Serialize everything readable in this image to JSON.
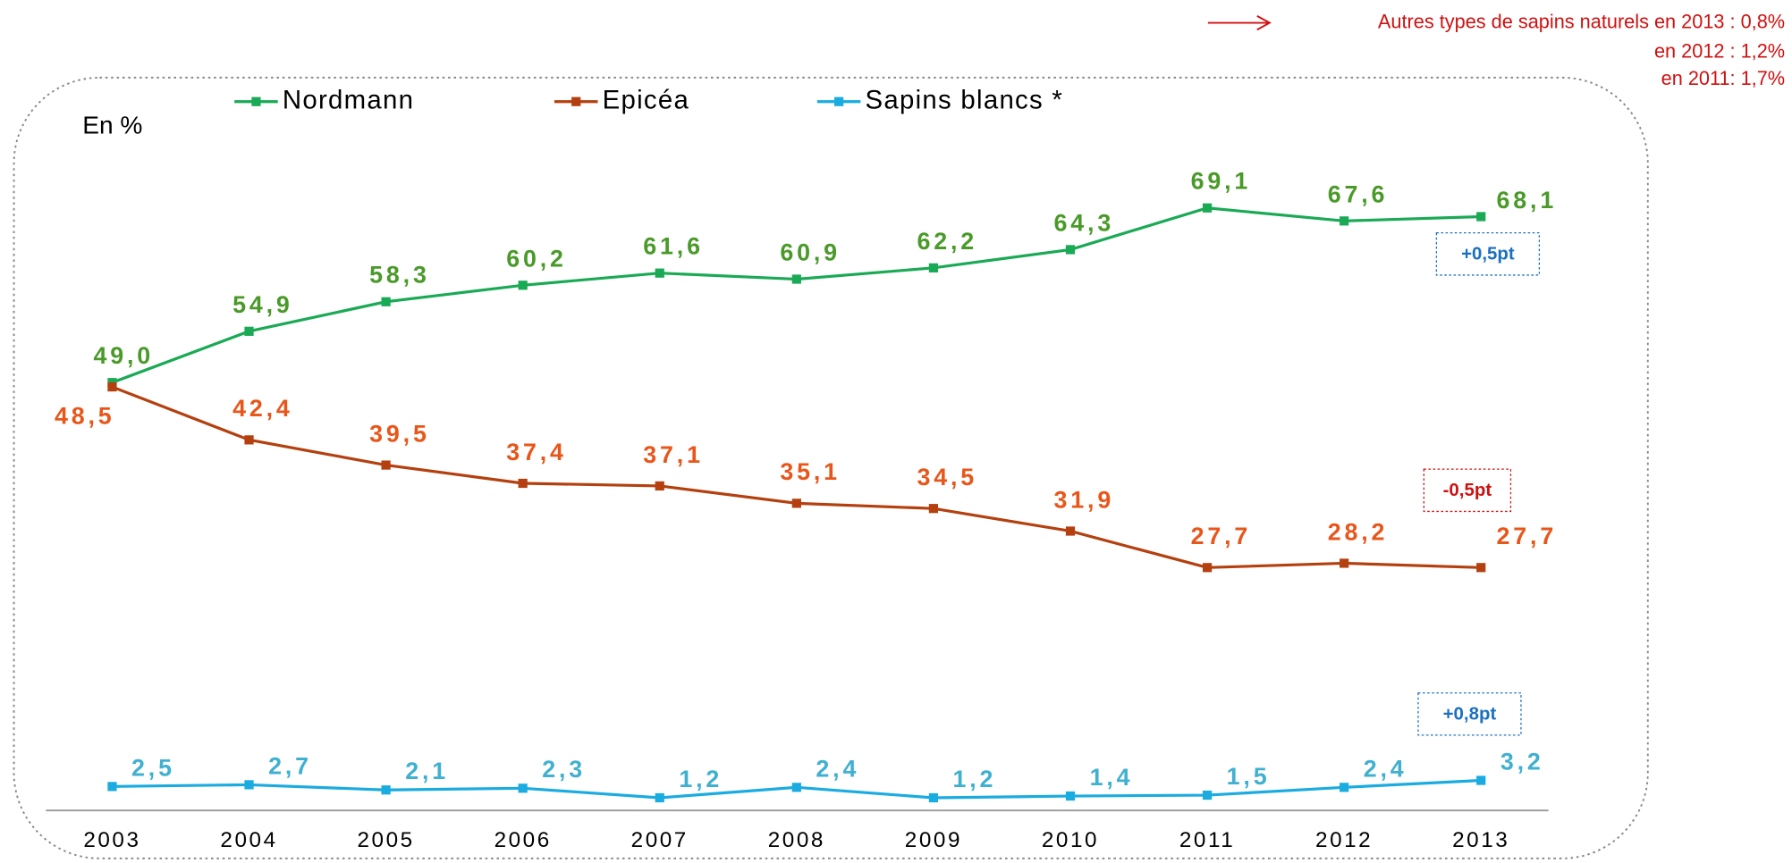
{
  "chart_data": {
    "type": "line",
    "unit_label": "En %",
    "categories": [
      "2003",
      "2004",
      "2005",
      "2006",
      "2007",
      "2008",
      "2009",
      "2010",
      "2011",
      "2012",
      "2013"
    ],
    "series": [
      {
        "name": "Nordmann",
        "color": "#1aaa55",
        "label_color": "#4a9a2a",
        "values": [
          49.0,
          54.9,
          58.3,
          60.2,
          61.6,
          60.9,
          62.2,
          64.3,
          69.1,
          67.6,
          68.1
        ],
        "value_labels": [
          "49,0",
          "54,9",
          "58,3",
          "60,2",
          "61,6",
          "60,9",
          "62,2",
          "64,3",
          "69,1",
          "67,6",
          "68,1"
        ]
      },
      {
        "name": "Epicéa",
        "color": "#b5400f",
        "label_color": "#e8561a",
        "values": [
          48.5,
          42.4,
          39.5,
          37.4,
          37.1,
          35.1,
          34.5,
          31.9,
          27.7,
          28.2,
          27.7
        ],
        "value_labels": [
          "48,5",
          "42,4",
          "39,5",
          "37,4",
          "37,1",
          "35,1",
          "34,5",
          "31,9",
          "27,7",
          "28,2",
          "27,7"
        ]
      },
      {
        "name": "Sapins blancs *",
        "color": "#1aace0",
        "label_color": "#40b0d0",
        "values": [
          2.5,
          2.7,
          2.1,
          2.3,
          1.2,
          2.4,
          1.2,
          1.4,
          1.5,
          2.4,
          3.2
        ],
        "value_labels": [
          "2,5",
          "2,7",
          "2,1",
          "2,3",
          "1,2",
          "2,4",
          "1,2",
          "1,4",
          "1,5",
          "2,4",
          "3,2"
        ]
      }
    ],
    "annotations": [
      "+0,5pt",
      "-0,5pt",
      "+0,8pt"
    ],
    "note": [
      "Autres types de sapins naturels en 2013 : 0,8%",
      "en 2012 : 1,2%",
      "en 2011: 1,7%"
    ]
  }
}
